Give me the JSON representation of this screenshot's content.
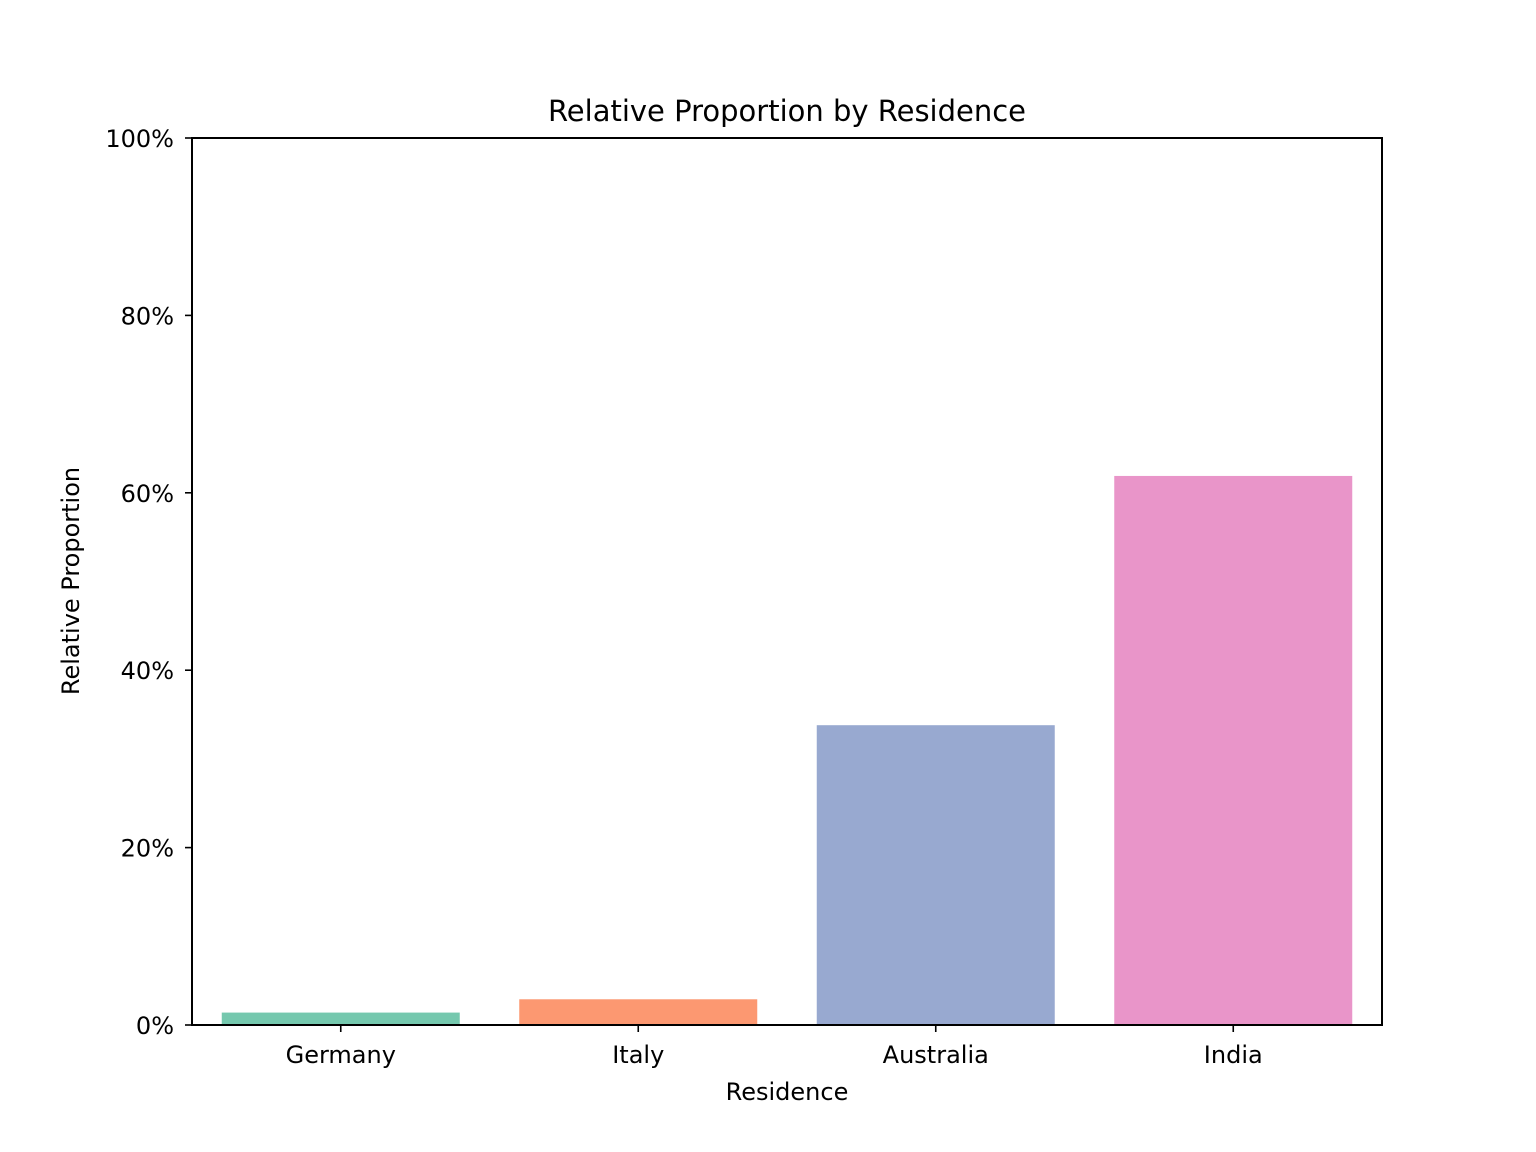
{
  "chart_data": {
    "type": "bar",
    "title": "Relative Proportion by Residence",
    "xlabel": "Residence",
    "ylabel": "Relative Proportion",
    "categories": [
      "Germany",
      "Italy",
      "Australia",
      "India"
    ],
    "values": [
      1.4,
      2.9,
      33.8,
      61.9
    ],
    "colors": [
      "#66c2a5",
      "#fc8d62",
      "#8da0cb",
      "#e78ac3"
    ],
    "bar_opacity": 0.9,
    "ylim": [
      0,
      100
    ],
    "yticks": [
      0,
      20,
      40,
      60,
      80,
      100
    ],
    "ytick_labels": [
      "0%",
      "20%",
      "40%",
      "60%",
      "80%",
      "100%"
    ],
    "grid": false,
    "legend": "none"
  }
}
